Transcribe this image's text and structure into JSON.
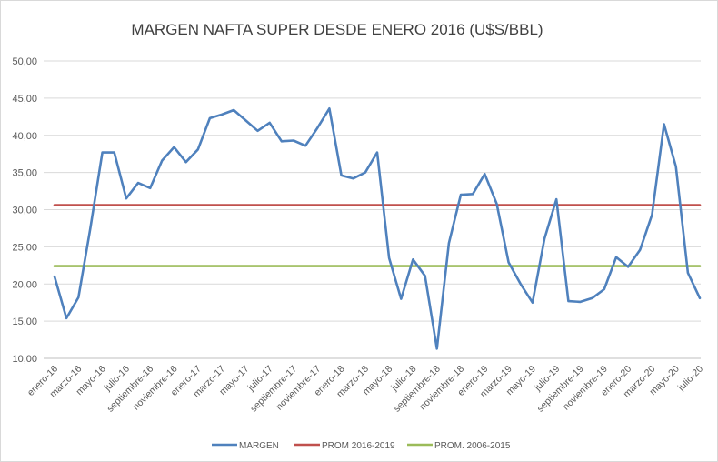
{
  "chart_data": {
    "type": "line",
    "title": "MARGEN NAFTA SUPER DESDE ENERO 2016 (U$S/BBL)",
    "xlabel": "",
    "ylabel": "",
    "ylim": [
      10,
      50
    ],
    "yticks": [
      "10,00",
      "15,00",
      "20,00",
      "25,00",
      "30,00",
      "35,00",
      "40,00",
      "45,00",
      "50,00"
    ],
    "grid": "horizontal",
    "legend_position": "bottom",
    "x": [
      "ene-16",
      "feb-16",
      "mar-16",
      "abr-16",
      "may-16",
      "jun-16",
      "jul-16",
      "ago-16",
      "sep-16",
      "oct-16",
      "nov-16",
      "dic-16",
      "ene-17",
      "feb-17",
      "mar-17",
      "abr-17",
      "may-17",
      "jun-17",
      "jul-17",
      "ago-17",
      "sep-17",
      "oct-17",
      "nov-17",
      "dic-17",
      "ene-18",
      "feb-18",
      "mar-18",
      "abr-18",
      "may-18",
      "jun-18",
      "jul-18",
      "ago-18",
      "sep-18",
      "oct-18",
      "nov-18",
      "dic-18",
      "ene-19",
      "feb-19",
      "mar-19",
      "abr-19",
      "may-19",
      "jun-19",
      "jul-19",
      "ago-19",
      "sep-19",
      "oct-19",
      "nov-19",
      "dic-19",
      "ene-20",
      "feb-20",
      "mar-20",
      "abr-20",
      "may-20",
      "jun-20",
      "jul-20"
    ],
    "xtick_labels": [
      "enero-16",
      "marzo-16",
      "mayo-16",
      "julio-16",
      "septiembre-16",
      "noviembre-16",
      "enero-17",
      "marzo-17",
      "mayo-17",
      "julio-17",
      "septiembre-17",
      "noviembre-17",
      "enero-18",
      "marzo-18",
      "mayo-18",
      "julio-18",
      "septiembre-18",
      "noviembre-18",
      "enero-19",
      "marzo-19",
      "mayo-19",
      "julio-19",
      "septiembre-19",
      "noviembre-19",
      "enero-20",
      "marzo-20",
      "mayo-20",
      "julio-20"
    ],
    "series": [
      {
        "name": "MARGEN",
        "color": "#4f81bd",
        "values": [
          21.0,
          15.4,
          18.2,
          27.5,
          37.7,
          37.7,
          31.5,
          33.6,
          32.9,
          36.6,
          38.4,
          36.4,
          38.1,
          42.3,
          42.8,
          43.4,
          42.0,
          40.6,
          41.7,
          39.2,
          39.3,
          38.6,
          41.0,
          43.6,
          34.6,
          34.2,
          35.0,
          37.7,
          23.5,
          18.0,
          23.3,
          21.1,
          11.3,
          25.5,
          32.0,
          32.1,
          34.8,
          30.8,
          22.9,
          20.0,
          17.5,
          26.1,
          31.4,
          17.7,
          17.6,
          18.1,
          19.3,
          23.6,
          22.3,
          24.6,
          29.3,
          41.5,
          35.8,
          21.5,
          18.1
        ]
      },
      {
        "name": "PROM 2016-2019",
        "color": "#c0504d",
        "values": [
          30.6,
          30.6,
          30.6,
          30.6,
          30.6,
          30.6,
          30.6,
          30.6,
          30.6,
          30.6,
          30.6,
          30.6,
          30.6,
          30.6,
          30.6,
          30.6,
          30.6,
          30.6,
          30.6,
          30.6,
          30.6,
          30.6,
          30.6,
          30.6,
          30.6,
          30.6,
          30.6,
          30.6,
          30.6,
          30.6,
          30.6,
          30.6,
          30.6,
          30.6,
          30.6,
          30.6,
          30.6,
          30.6,
          30.6,
          30.6,
          30.6,
          30.6,
          30.6,
          30.6,
          30.6,
          30.6,
          30.6,
          30.6,
          30.6,
          30.6,
          30.6,
          30.6,
          30.6,
          30.6,
          30.6
        ]
      },
      {
        "name": "PROM. 2006-2015",
        "color": "#9bbb59",
        "values": [
          22.4,
          22.4,
          22.4,
          22.4,
          22.4,
          22.4,
          22.4,
          22.4,
          22.4,
          22.4,
          22.4,
          22.4,
          22.4,
          22.4,
          22.4,
          22.4,
          22.4,
          22.4,
          22.4,
          22.4,
          22.4,
          22.4,
          22.4,
          22.4,
          22.4,
          22.4,
          22.4,
          22.4,
          22.4,
          22.4,
          22.4,
          22.4,
          22.4,
          22.4,
          22.4,
          22.4,
          22.4,
          22.4,
          22.4,
          22.4,
          22.4,
          22.4,
          22.4,
          22.4,
          22.4,
          22.4,
          22.4,
          22.4,
          22.4,
          22.4,
          22.4,
          22.4,
          22.4,
          22.4,
          22.4
        ]
      }
    ]
  }
}
